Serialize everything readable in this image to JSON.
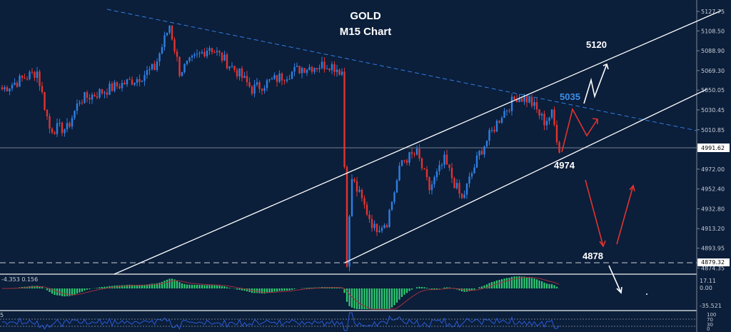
{
  "chart_data": {
    "type": "candlestick",
    "title": "GOLD",
    "subtitle": "M15 Chart",
    "ylim": [
      4870,
      5135
    ],
    "y_ticks": [
      "5127.75",
      "5108.50",
      "5088.90",
      "5069.30",
      "5050.05",
      "5030.45",
      "5010.85",
      "4972.00",
      "4952.40",
      "4932.80",
      "4913.20",
      "4893.95",
      "4874.35"
    ],
    "current_price": "4991.62",
    "marked_price": "4879.32",
    "price_path": [
      [
        0,
        5050.9
      ],
      [
        14,
        5068.5
      ],
      [
        19,
        5012.1
      ],
      [
        26,
        5012.1
      ],
      [
        31,
        5040.3
      ],
      [
        54,
        5061.5
      ],
      [
        61,
        5072.0
      ],
      [
        67,
        5114.4
      ],
      [
        71,
        5068.5
      ],
      [
        83,
        5093.2
      ],
      [
        94,
        5068.5
      ],
      [
        100,
        5050.9
      ],
      [
        120,
        5072.0
      ],
      [
        131,
        5075.6
      ],
      [
        136,
        5068.5
      ],
      [
        138,
        4881.6
      ],
      [
        140,
        4962.7
      ],
      [
        149,
        4913.4
      ],
      [
        154,
        4920.4
      ],
      [
        160,
        4980.4
      ],
      [
        166,
        4987.4
      ],
      [
        171,
        4952.2
      ],
      [
        177,
        4980.4
      ],
      [
        184,
        4941.6
      ],
      [
        191,
        4987.4
      ],
      [
        200,
        5026.2
      ],
      [
        206,
        5043.8
      ],
      [
        211,
        5040.3
      ],
      [
        217,
        5019.1
      ],
      [
        220,
        5026.2
      ],
      [
        223,
        4992.3
      ]
    ],
    "up_color": "#2f7fe0",
    "down_color": "#e0342f",
    "annotations": {
      "target_high": "5120",
      "resistance": "5035",
      "support": "4974",
      "target_low": "4878"
    },
    "macd": {
      "label": "-4.353 0.156",
      "ticks": [
        "17.11",
        "0.00",
        "-35.521"
      ],
      "hist_color": "#2ecc71",
      "signal_color": "#a0303a"
    },
    "rsi": {
      "label": "5",
      "ticks": [
        "100",
        "70",
        "30",
        "0"
      ],
      "line_color": "#2a5bd7"
    }
  }
}
